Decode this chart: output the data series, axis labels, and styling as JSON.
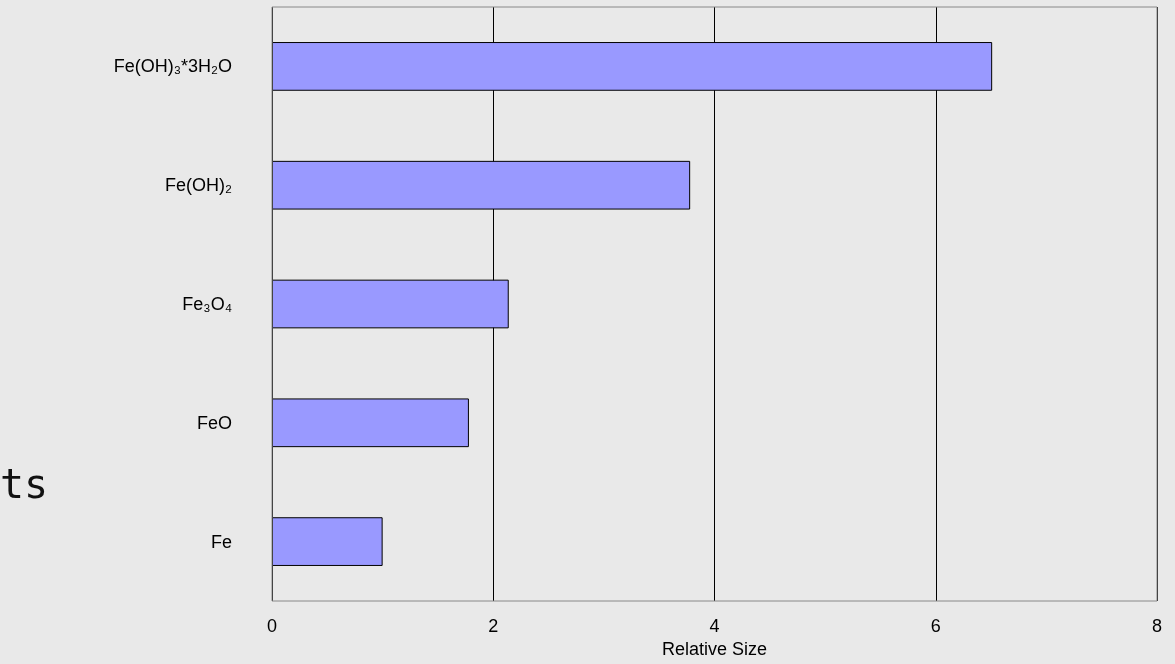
{
  "chart_data": {
    "type": "bar",
    "orientation": "horizontal",
    "xlabel": "Relative Size",
    "categories": [
      "Fe(OH)₃*3H₂O",
      "Fe(OH)₂",
      "Fe₃O₄",
      "FeO",
      "Fe"
    ],
    "values": [
      6.51,
      3.78,
      2.14,
      1.78,
      1.0
    ],
    "color": "#9999ff",
    "xlim": [
      0,
      8
    ],
    "xticks": [
      0,
      2,
      4,
      6,
      8
    ],
    "grid": "x",
    "annotations": [
      "ts"
    ]
  }
}
